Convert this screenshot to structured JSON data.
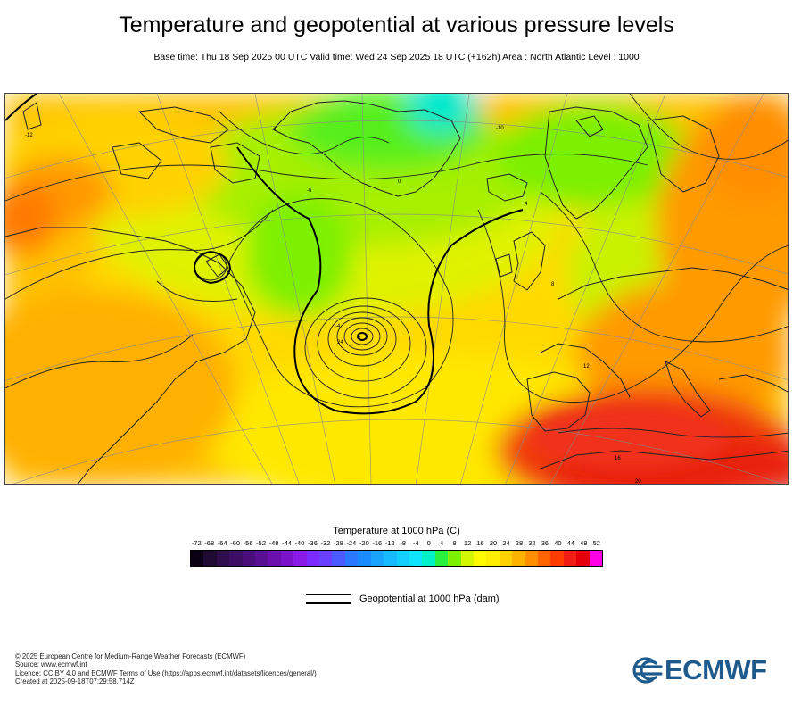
{
  "header": {
    "title": "Temperature and geopotential at various pressure levels",
    "subtitle": "Base time: Thu 18 Sep 2025 00 UTC Valid time: Wed 24 Sep 2025 18 UTC (+162h) Area : North Atlantic Level : 1000"
  },
  "map": {
    "region": "North Atlantic",
    "contour_labels": [
      "1",
      "0",
      "-4",
      "-6",
      "-8",
      "-10",
      "-12",
      "4",
      "8",
      "12",
      "16",
      "20",
      "24"
    ],
    "colors": {
      "warm": "#ff6a00",
      "hot": "#f5230f",
      "mild": "#ffc200",
      "neutral": "#ffe500",
      "cool": "#c5f000",
      "cold": "#56f000",
      "colder": "#00e5d0",
      "coast": "#222222"
    }
  },
  "colorbar": {
    "title": "Temperature at 1000 hPa (C)",
    "ticks": [
      "-72",
      "-68",
      "-64",
      "-60",
      "-56",
      "-52",
      "-48",
      "-44",
      "-40",
      "-36",
      "-32",
      "-28",
      "-24",
      "-20",
      "-16",
      "-12",
      "-8",
      "-4",
      "0",
      "4",
      "8",
      "12",
      "16",
      "20",
      "24",
      "28",
      "32",
      "36",
      "40",
      "44",
      "48",
      "52"
    ],
    "colors": [
      "#0a0014",
      "#1e0a33",
      "#2e0c4d",
      "#3b0e63",
      "#4a0d7a",
      "#580f91",
      "#6a0fab",
      "#7a12c9",
      "#8a1ae6",
      "#7b2bff",
      "#6a40ff",
      "#4a5cff",
      "#2a78ff",
      "#1a8cff",
      "#19a3ff",
      "#17b9ff",
      "#12cfff",
      "#10e3ff",
      "#00f0c8",
      "#29f03f",
      "#7cf000",
      "#d2f500",
      "#fffb00",
      "#ffee00",
      "#ffd200",
      "#ffb300",
      "#ff8e00",
      "#ff6400",
      "#ff3c00",
      "#f01d14",
      "#e6000a",
      "#ff00e6"
    ]
  },
  "legend": {
    "geopotential": "Geopotential at 1000 hPa (dam)"
  },
  "footer": {
    "copyright": "© 2025 European Centre for Medium-Range Weather Forecasts (ECMWF)",
    "source": "Source: www.ecmwf.int",
    "licence": "Licence: CC BY 4.0 and ECMWF Terms of Use (https://apps.ecmwf.int/datasets/licences/general/)",
    "created": "Created at 2025-09-18T07:29:58.714Z"
  },
  "logo": {
    "text": "ECMWF",
    "color": "#1f5a8c"
  }
}
